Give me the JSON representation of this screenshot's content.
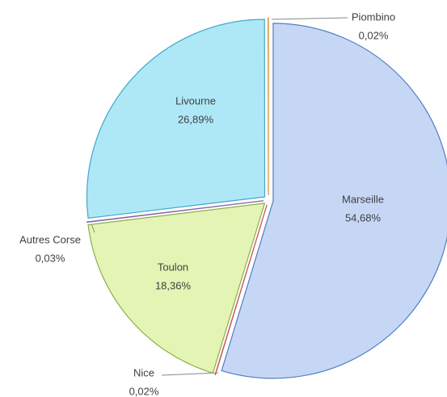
{
  "chart_data": {
    "type": "pie",
    "categories": [
      "Marseille",
      "Nice",
      "Toulon",
      "Autres Corse",
      "Livourne",
      "Piombino"
    ],
    "values": [
      54.68,
      0.02,
      18.36,
      0.03,
      26.89,
      0.02
    ],
    "value_labels": [
      "54,68%",
      "0,02%",
      "18,36%",
      "0,03%",
      "26,89%",
      "0,02%"
    ],
    "colors": [
      "#c6d7f6",
      "#c0504d",
      "#e4f4b4",
      "#8064a2",
      "#aee8f7",
      "#f2a65a"
    ]
  }
}
